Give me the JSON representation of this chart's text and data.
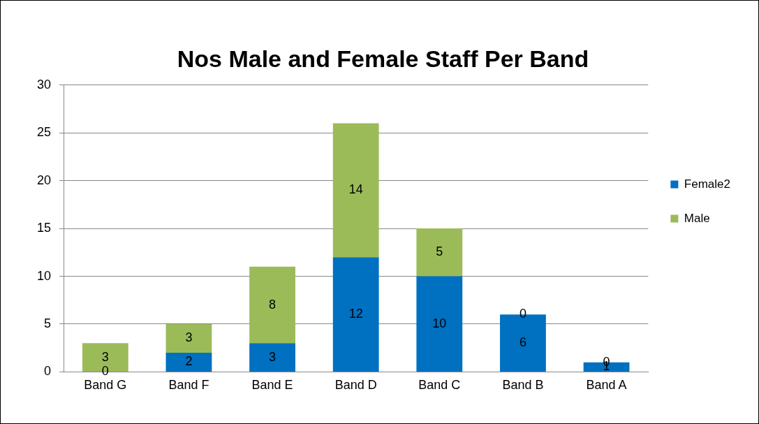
{
  "chart_data": {
    "type": "bar",
    "title": "Nos Male and Female Staff Per Band",
    "categories": [
      "Band G",
      "Band F",
      "Band E",
      "Band D",
      "Band C",
      "Band B",
      "Band A"
    ],
    "series": [
      {
        "name": "Female2",
        "color": "#0070c0",
        "values": [
          0,
          2,
          3,
          12,
          10,
          6,
          1
        ]
      },
      {
        "name": "Male",
        "color": "#9bbb59",
        "values": [
          3,
          3,
          8,
          14,
          5,
          0,
          0
        ]
      }
    ],
    "stacked": true,
    "ylim": [
      0,
      30
    ],
    "yticks": [
      0,
      5,
      10,
      15,
      20,
      25,
      30
    ],
    "grid": "y",
    "legend": "right",
    "data_labels": true
  }
}
